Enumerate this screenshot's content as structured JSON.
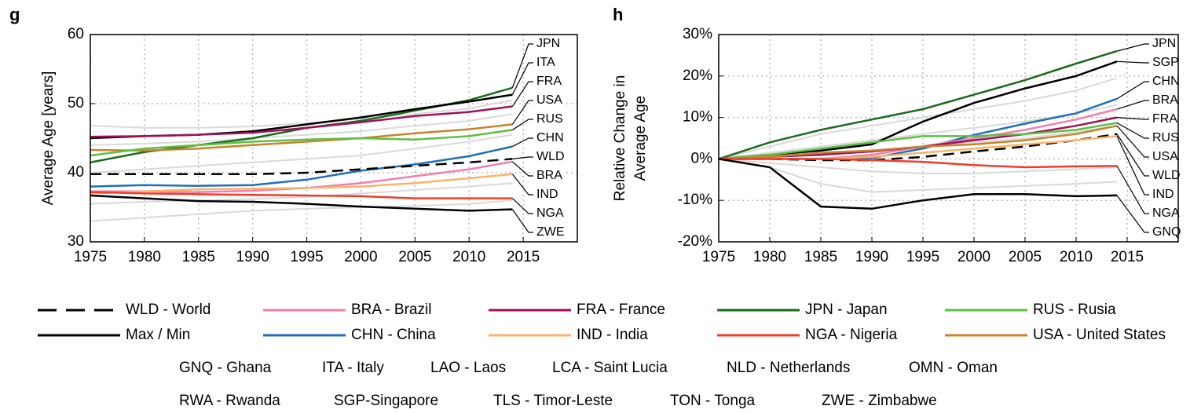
{
  "chart_data": [
    {
      "type": "line",
      "panel": "g",
      "ylabel": [
        "Average Age [years]"
      ],
      "x": [
        1975,
        1980,
        1985,
        1990,
        1995,
        2000,
        2005,
        2010,
        2014
      ],
      "xlim": [
        1975,
        2020
      ],
      "xticks": [
        1975,
        1980,
        1985,
        1990,
        1995,
        2000,
        2005,
        2010,
        2015
      ],
      "ylim": [
        30,
        60
      ],
      "yticks": [
        30,
        40,
        50,
        60
      ],
      "grid": true,
      "background_series": [
        {
          "color": "#d9d9d9",
          "values": [
            46.8,
            46.5,
            46.5,
            46.7,
            47.2,
            47.8,
            48.5,
            49.3,
            50.5
          ]
        },
        {
          "color": "#d9d9d9",
          "values": [
            33,
            33.5,
            34,
            34.5,
            34.8,
            35,
            35.2,
            35.5,
            36
          ]
        },
        {
          "color": "#d9d9d9",
          "values": [
            44,
            44.2,
            44.5,
            45,
            45.5,
            46,
            46.8,
            47.5,
            48.5
          ]
        },
        {
          "color": "#d9d9d9",
          "values": [
            40,
            40.5,
            41,
            41.5,
            42,
            42.5,
            43.5,
            44.5,
            45.5
          ]
        },
        {
          "color": "#d9d9d9",
          "values": [
            35.5,
            35.8,
            36,
            36.2,
            36.5,
            37,
            37.5,
            38,
            38.5
          ]
        }
      ],
      "series": [
        {
          "name": "JPN",
          "color": "#1a6b1a",
          "values": [
            41.5,
            43,
            44,
            45,
            46.5,
            47.5,
            49,
            50.5,
            52.3
          ]
        },
        {
          "name": "ITA",
          "color": "#000000",
          "values": [
            45,
            45.3,
            45.5,
            46,
            47,
            48,
            49.2,
            50.3,
            51.3
          ]
        },
        {
          "name": "FRA",
          "color": "#a0105a",
          "values": [
            45.2,
            45.3,
            45.5,
            45.8,
            46.5,
            47.3,
            48.2,
            48.8,
            49.6
          ]
        },
        {
          "name": "USA",
          "color": "#c8832a",
          "values": [
            43.3,
            43.2,
            43.5,
            44,
            44.5,
            45,
            45.7,
            46.3,
            47
          ]
        },
        {
          "name": "RUS",
          "color": "#5cc040",
          "values": [
            42.5,
            43.5,
            44,
            44.5,
            44.8,
            45,
            44.8,
            45.3,
            46.2
          ]
        },
        {
          "name": "CHN",
          "color": "#1f6fba",
          "values": [
            38,
            38.2,
            38.1,
            38.2,
            39,
            40.3,
            41.2,
            42.4,
            43.8
          ]
        },
        {
          "name": "WLD",
          "color": "#000000",
          "dashed": true,
          "values": [
            39.8,
            39.8,
            39.8,
            39.8,
            40,
            40.5,
            41,
            41.5,
            42
          ]
        },
        {
          "name": "BRA",
          "color": "#f07fb0",
          "values": [
            37.3,
            37.3,
            37.2,
            37.4,
            37.8,
            38.5,
            39.5,
            40.5,
            41.6
          ]
        },
        {
          "name": "IND",
          "color": "#f9b36a",
          "values": [
            37,
            37.3,
            37.6,
            37.7,
            37.8,
            38,
            38.5,
            39.2,
            39.8
          ]
        },
        {
          "name": "NGA",
          "color": "#f03c2a",
          "values": [
            37.2,
            37,
            36.9,
            36.8,
            36.7,
            36.6,
            36.3,
            36.3,
            36.3
          ]
        },
        {
          "name": "ZWE",
          "color": "#000000",
          "values": [
            36.7,
            36.3,
            35.9,
            35.8,
            35.5,
            35.1,
            34.8,
            34.5,
            34.7
          ]
        }
      ]
    },
    {
      "type": "line",
      "panel": "h",
      "ylabel": [
        "Relative Change in",
        "Average Age"
      ],
      "x": [
        1975,
        1980,
        1985,
        1990,
        1995,
        2000,
        2005,
        2010,
        2014
      ],
      "xlim": [
        1975,
        2020
      ],
      "xticks": [
        1975,
        1980,
        1985,
        1990,
        1995,
        2000,
        2005,
        2010,
        2015
      ],
      "ylim": [
        -20,
        30
      ],
      "yticks": [
        {
          "value": -20,
          "label": "-20%"
        },
        {
          "value": -10,
          "label": "-10%"
        },
        {
          "value": 0,
          "label": "0%"
        },
        {
          "value": 10,
          "label": "10%"
        },
        {
          "value": 20,
          "label": "20%"
        },
        {
          "value": 30,
          "label": "30%"
        }
      ],
      "grid": true,
      "background_series": [
        {
          "color": "#d9d9d9",
          "values": [
            0,
            3,
            6,
            8,
            10,
            12,
            14,
            16.5,
            19.5
          ]
        },
        {
          "color": "#d9d9d9",
          "values": [
            0,
            -2,
            -6,
            -8,
            -7.5,
            -7,
            -6.5,
            -6,
            -5.5
          ]
        },
        {
          "color": "#d9d9d9",
          "values": [
            0,
            1.5,
            3,
            4.5,
            6,
            7.5,
            9,
            11,
            13
          ]
        },
        {
          "color": "#d9d9d9",
          "values": [
            0,
            -1,
            -2,
            -3,
            -3.5,
            -3.5,
            -3,
            -2.5,
            -2
          ]
        },
        {
          "color": "#d9d9d9",
          "values": [
            0,
            0.5,
            1,
            2,
            3,
            4,
            5,
            6.5,
            8
          ]
        }
      ],
      "series": [
        {
          "name": "JPN",
          "color": "#1a6b1a",
          "values": [
            0,
            4,
            7,
            9.5,
            12,
            15.5,
            19,
            23,
            26
          ]
        },
        {
          "name": "SGP",
          "color": "#000000",
          "values": [
            0,
            1,
            2,
            3.5,
            9,
            13.5,
            17,
            20,
            23.5
          ]
        },
        {
          "name": "CHN",
          "color": "#1f6fba",
          "values": [
            0,
            0,
            0,
            0.2,
            2.5,
            5.8,
            8.5,
            11,
            14.5
          ]
        },
        {
          "name": "BRA",
          "color": "#f07fb0",
          "values": [
            0,
            0,
            0,
            1,
            3,
            5,
            7,
            9.5,
            12
          ]
        },
        {
          "name": "FRA",
          "color": "#a0105a",
          "values": [
            0,
            0.5,
            1,
            1.8,
            3,
            4.5,
            6,
            8,
            10
          ]
        },
        {
          "name": "RUS",
          "color": "#5cc040",
          "values": [
            0,
            1,
            2.5,
            4,
            5.5,
            5.5,
            6,
            7,
            8.7
          ]
        },
        {
          "name": "USA",
          "color": "#c8832a",
          "values": [
            0,
            0.5,
            1.5,
            2,
            3,
            3.5,
            4.5,
            6,
            8
          ]
        },
        {
          "name": "WLD",
          "color": "#000000",
          "dashed": true,
          "values": [
            0,
            0,
            -0.3,
            -0.3,
            0.5,
            1.8,
            3,
            4.5,
            6
          ]
        },
        {
          "name": "IND",
          "color": "#f9b36a",
          "values": [
            0,
            0,
            0,
            0.5,
            1.5,
            2.5,
            3.5,
            4.5,
            5.5
          ]
        },
        {
          "name": "NGA",
          "color": "#f03c2a",
          "values": [
            0,
            0,
            0,
            -0.3,
            -0.7,
            -1.5,
            -2,
            -1.8,
            -1.7
          ]
        },
        {
          "name": "GNQ",
          "color": "#000000",
          "values": [
            0,
            -2,
            -11.5,
            -12,
            -10,
            -8.5,
            -8.5,
            -9,
            -8.8
          ]
        }
      ]
    }
  ],
  "legend": [
    [
      {
        "name": "WLD - World",
        "color": "#000000",
        "dashed": true
      },
      {
        "name": "BRA - Brazil",
        "color": "#f07fb0"
      },
      {
        "name": "FRA - France",
        "color": "#a0105a"
      },
      {
        "name": "JPN - Japan",
        "color": "#1a6b1a"
      },
      {
        "name": "RUS - Rusia",
        "color": "#5cc040"
      }
    ],
    [
      {
        "name": "Max / Min",
        "color": "#000000"
      },
      {
        "name": "CHN - China",
        "color": "#1f6fba"
      },
      {
        "name": "IND - India",
        "color": "#f9b36a"
      },
      {
        "name": "NGA - Nigeria",
        "color": "#f03c2a"
      },
      {
        "name": "USA - United States",
        "color": "#c8832a"
      }
    ]
  ],
  "abbreviations": [
    [
      "GNQ - Ghana",
      "ITA - Italy",
      "LAO - Laos",
      "LCA - Saint Lucia",
      "NLD - Netherlands",
      "OMN - Oman"
    ],
    [
      "RWA - Rwanda",
      "SGP-Singapore",
      "TLS - Timor-Leste",
      "TON - Tonga",
      "ZWE - Zimbabwe"
    ]
  ]
}
